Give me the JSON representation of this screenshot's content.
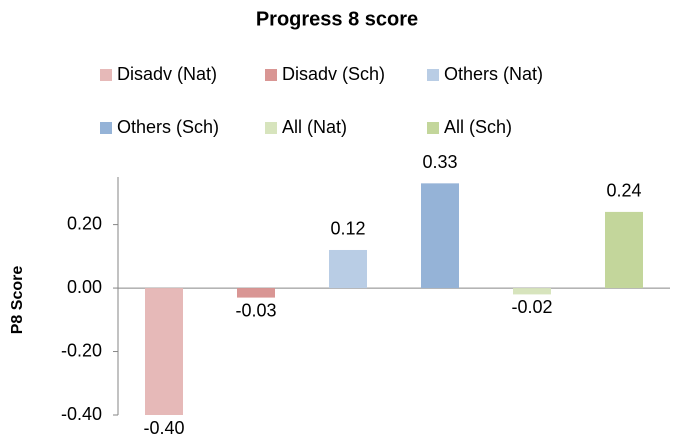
{
  "chart_data": {
    "type": "bar",
    "title": "Progress 8 score",
    "y_label": "P8 Score",
    "categories": [
      null
    ],
    "series": [
      {
        "name": "Disadv (Nat)",
        "color": "#e6b9b8",
        "values": [
          -0.4
        ],
        "value_labels": [
          "-0.40"
        ]
      },
      {
        "name": "Disadv (Sch)",
        "color": "#d99694",
        "values": [
          -0.03
        ],
        "value_labels": [
          "-0.03"
        ]
      },
      {
        "name": "Others (Nat)",
        "color": "#b9cde5",
        "values": [
          0.12
        ],
        "value_labels": [
          "0.12"
        ]
      },
      {
        "name": "Others (Sch)",
        "color": "#95b3d7",
        "values": [
          0.33
        ],
        "value_labels": [
          "0.33"
        ]
      },
      {
        "name": "All (Nat)",
        "color": "#d7e4bd",
        "values": [
          -0.02
        ],
        "value_labels": [
          "-0.02"
        ]
      },
      {
        "name": "All (Sch)",
        "color": "#c3d69b",
        "values": [
          0.24
        ],
        "value_labels": [
          "0.24"
        ]
      }
    ],
    "ylim": [
      -0.4,
      0.35
    ],
    "yticks": [
      {
        "value": -0.4,
        "label": "-0.40"
      },
      {
        "value": -0.2,
        "label": "-0.20"
      },
      {
        "value": 0,
        "label": "0.00"
      },
      {
        "value": 0.2,
        "label": "0.20"
      }
    ],
    "legend": "top",
    "grid": false
  }
}
